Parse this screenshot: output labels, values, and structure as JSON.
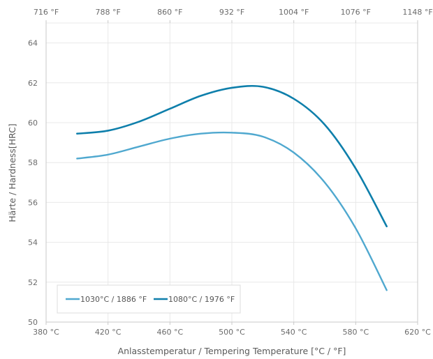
{
  "chart_data": {
    "type": "line",
    "xlabel": "Anlasstemperatur / Tempering Temperature [°C / °F]",
    "ylabel": "Härte / Hardness[HRC]",
    "xlim": [
      380,
      620
    ],
    "ylim": [
      50,
      65
    ],
    "x_ticks": [
      380,
      420,
      460,
      500,
      540,
      580,
      620
    ],
    "x_tick_labels": [
      "380 °C",
      "420 °C",
      "460 °C",
      "500 °C",
      "540 °C",
      "580 °C",
      "620 °C"
    ],
    "x2_ticks": [
      380,
      420,
      460,
      500,
      540,
      580,
      620
    ],
    "x2_tick_labels": [
      "716 °F",
      "788 °F",
      "860 °F",
      "932 °F",
      "1004 °F",
      "1076 °F",
      "1148 °F"
    ],
    "y_ticks": [
      50,
      52,
      54,
      56,
      58,
      60,
      62,
      64
    ],
    "y_tick_labels": [
      "50",
      "52",
      "54",
      "56",
      "58",
      "60",
      "62",
      "64"
    ],
    "grid": true,
    "legend_position": "bottom-left",
    "series": [
      {
        "name": "1030°C / 1886 °F",
        "color": "#4fa8cf",
        "x": [
          400,
          420,
          440,
          460,
          480,
          500,
          520,
          540,
          560,
          580,
          600
        ],
        "y": [
          58.2,
          58.4,
          58.8,
          59.2,
          59.45,
          59.5,
          59.3,
          58.5,
          57.0,
          54.7,
          51.6
        ]
      },
      {
        "name": "1080°C / 1976 °F",
        "color": "#0e7fab",
        "x": [
          400,
          420,
          440,
          460,
          480,
          500,
          520,
          540,
          560,
          580,
          600
        ],
        "y": [
          59.45,
          59.6,
          60.05,
          60.7,
          61.35,
          61.75,
          61.8,
          61.2,
          59.9,
          57.7,
          54.8
        ]
      }
    ]
  }
}
